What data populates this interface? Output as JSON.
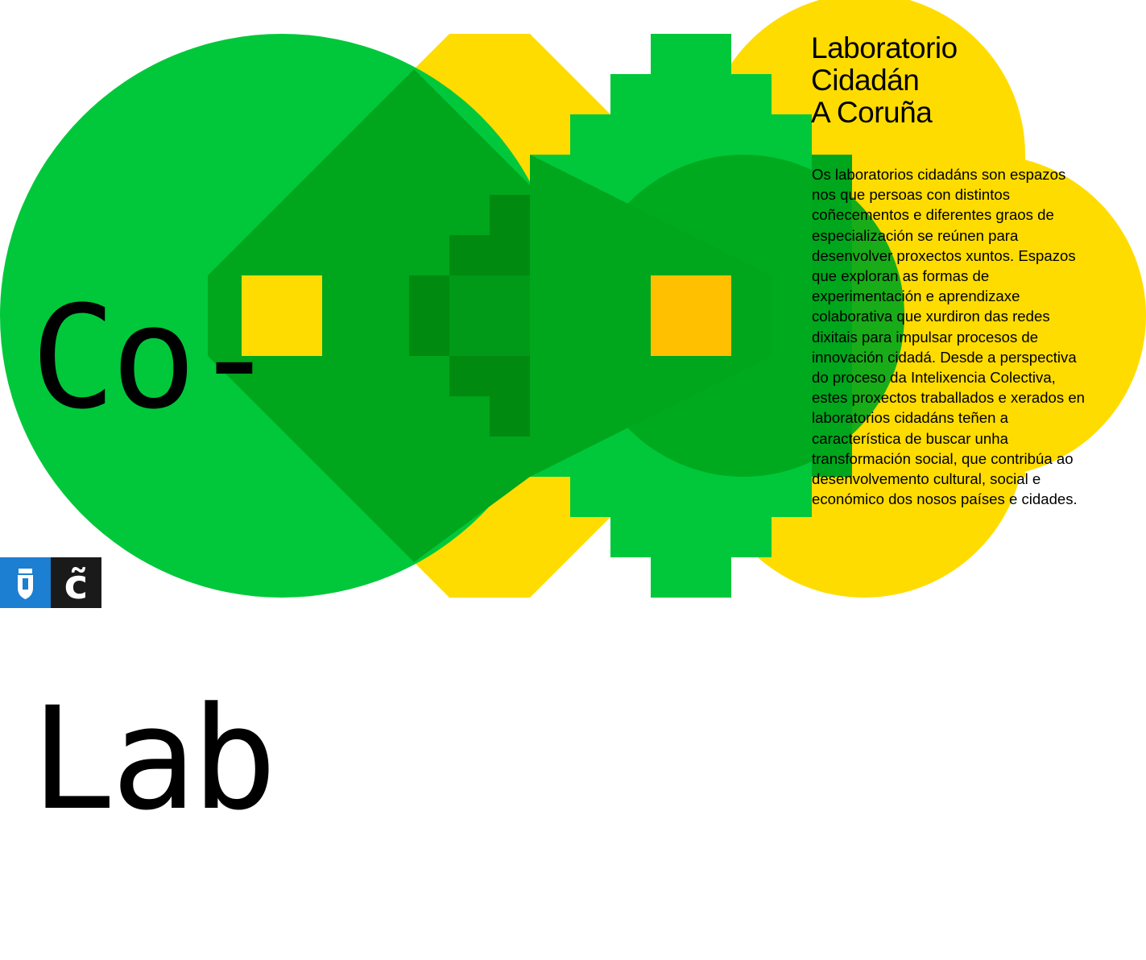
{
  "logo": {
    "line1": "Co-",
    "line2": "Lab"
  },
  "title": {
    "line1": "Laboratorio",
    "line2": "Cidadán",
    "line3": "A Coruña"
  },
  "description": "Os laboratorios cidadáns son espazos nos que persoas con distintos coñecementos e diferentes graos de especialización se reúnen para desenvolver proxectos xuntos. Espazos que exploran as formas de experimentación e aprendizaxe colaborativa que xurdiron das redes dixitais para impulsar procesos de innovación cidadá. Desde a perspectiva do proceso da Intelixencia Colectiva, estes proxectos traballados e xerados en laboratorios cidadáns teñen a característica de buscar unha transformación social, que contribúa ao desenvolvemento cultural, social e económico dos nosos países e cidades.",
  "badges": {
    "city_crest_icon": "coat-of-arms-icon",
    "mark": "c̃"
  },
  "colors": {
    "green": "#00c83a",
    "yellow": "#ffdc00",
    "dark_green": "#00a61c",
    "darker_green": "#008a10",
    "orange": "#ffc000",
    "blue": "#1d7fd1"
  }
}
